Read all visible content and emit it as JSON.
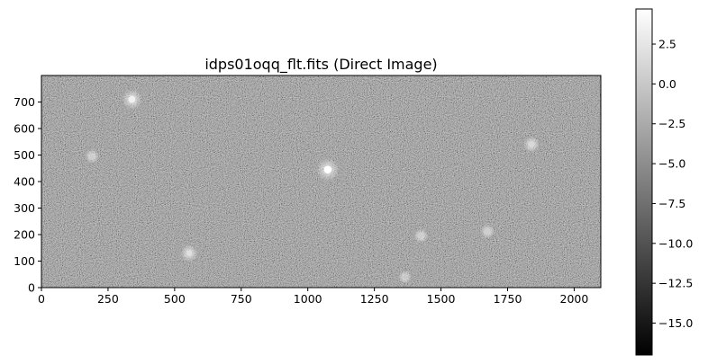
{
  "chart_data": {
    "type": "heatmap",
    "title": "idps01oqq_flt.fits (Direct Image)",
    "xlabel": "",
    "ylabel": "",
    "xlim": [
      0,
      2100
    ],
    "ylim": [
      0,
      800
    ],
    "x_ticks": [
      0,
      250,
      500,
      750,
      1000,
      1250,
      1500,
      1750,
      2000
    ],
    "y_ticks": [
      0,
      100,
      200,
      300,
      400,
      500,
      600,
      700
    ],
    "colormap": "gray",
    "colorbar": {
      "vmin": -17.0,
      "vmax": 4.7,
      "ticks": [
        2.5,
        0.0,
        -2.5,
        -5.0,
        -7.5,
        -10.0,
        -12.5,
        -15.0
      ],
      "tick_labels": [
        "2.5",
        "0.0",
        "−2.5",
        "−5.0",
        "−7.5",
        "−10.0",
        "−12.5",
        "−15.0"
      ]
    },
    "background_level": -4.5,
    "sources": [
      {
        "x": 1075,
        "y": 445,
        "value": 4.7
      },
      {
        "x": 340,
        "y": 710,
        "value": 3.5
      },
      {
        "x": 555,
        "y": 130,
        "value": 2.0
      },
      {
        "x": 1840,
        "y": 540,
        "value": 1.5
      },
      {
        "x": 1675,
        "y": 212,
        "value": 0.5
      },
      {
        "x": 1425,
        "y": 195,
        "value": 0.5
      },
      {
        "x": 190,
        "y": 495,
        "value": 0.5
      },
      {
        "x": 1365,
        "y": 40,
        "value": 0.0
      }
    ],
    "grid": false,
    "legend": "none"
  }
}
